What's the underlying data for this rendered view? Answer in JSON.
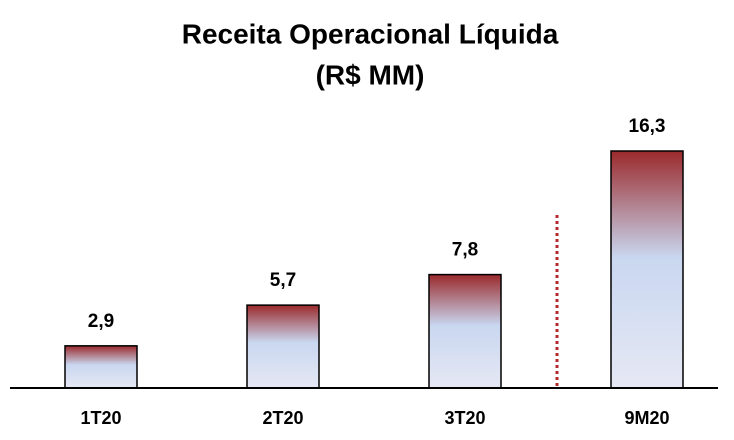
{
  "chart_data": {
    "type": "bar",
    "title": "Receita Operacional Líquida",
    "subtitle": "(R$ MM)",
    "categories": [
      "1T20",
      "2T20",
      "3T20",
      "9M20"
    ],
    "values": [
      2.9,
      5.7,
      7.8,
      16.3
    ],
    "value_labels": [
      "2,9",
      "5,7",
      "7,8",
      "16,3"
    ]
  }
}
